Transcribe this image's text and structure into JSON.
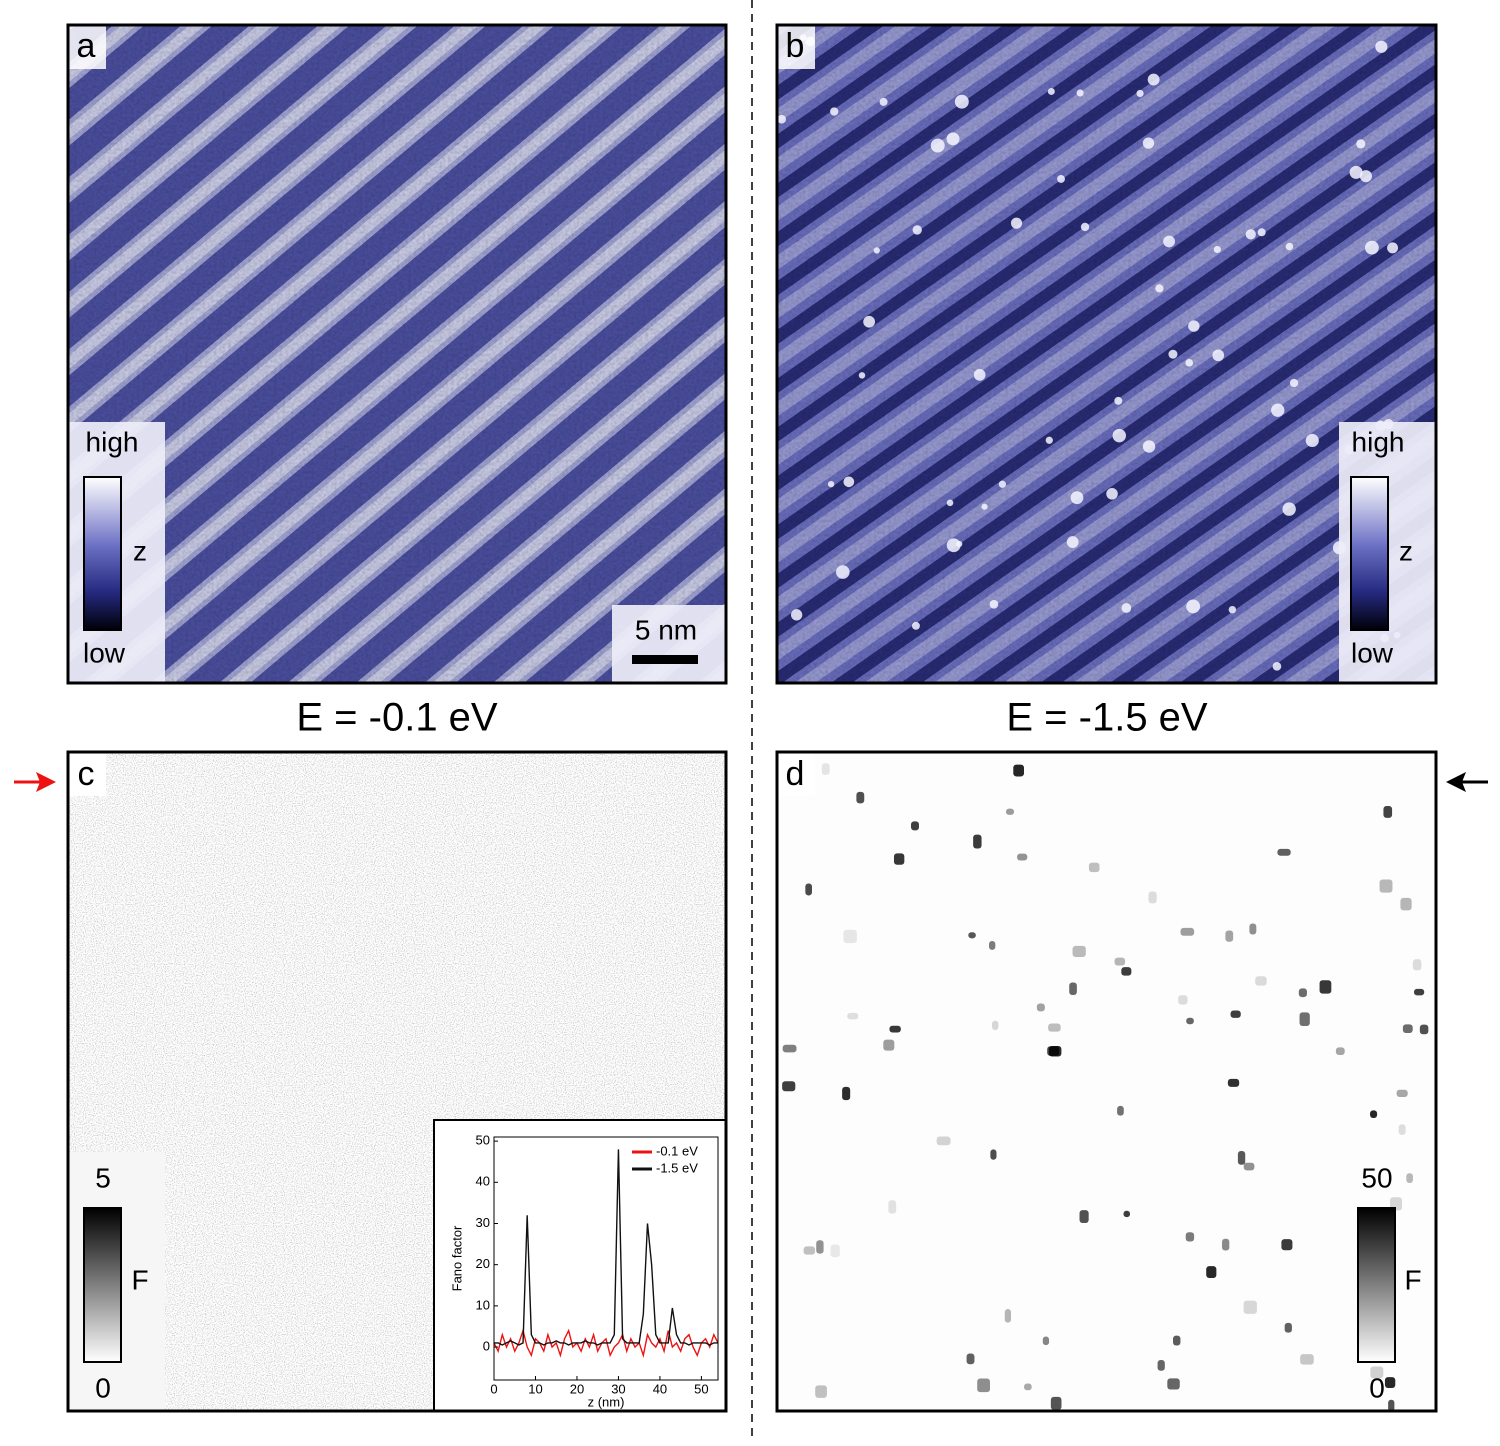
{
  "panels": [
    {
      "label": "a",
      "colorbar": {
        "top": "high",
        "axis": "z",
        "bottom": "low"
      },
      "scale_bar": "5 nm"
    },
    {
      "label": "b",
      "colorbar": {
        "top": "high",
        "axis": "z",
        "bottom": "low"
      }
    },
    {
      "label": "c",
      "colorbar": {
        "top": "5",
        "axis": "F",
        "bottom": "0"
      }
    },
    {
      "label": "d",
      "colorbar": {
        "top": "50",
        "axis": "F",
        "bottom": "0"
      }
    }
  ],
  "energies": [
    "E = -0.1 eV",
    "E = -1.5 eV"
  ],
  "chart_data": {
    "type": "line",
    "xlabel": "z (nm)",
    "ylabel": "Fano factor",
    "x": [
      0,
      1,
      2,
      3,
      4,
      5,
      6,
      7,
      8,
      9,
      10,
      11,
      12,
      13,
      14,
      15,
      16,
      17,
      18,
      19,
      20,
      21,
      22,
      23,
      24,
      25,
      26,
      27,
      28,
      29,
      30,
      31,
      32,
      33,
      34,
      35,
      36,
      37,
      38,
      39,
      40,
      41,
      42,
      43,
      44,
      45,
      46,
      47,
      48,
      49,
      50,
      51,
      52,
      53,
      54
    ],
    "series": [
      {
        "name": "-0.1 eV",
        "color": "#ee1111",
        "values": [
          1,
          -1,
          3,
          0,
          2,
          -1,
          1,
          4,
          0,
          -2,
          2,
          1,
          -1,
          3,
          0,
          1,
          -2,
          2,
          4,
          0,
          1,
          -1,
          2,
          0,
          3,
          -1,
          1,
          2,
          -2,
          0,
          1,
          3,
          -1,
          2,
          0,
          1,
          -2,
          3,
          1,
          0,
          2,
          -1,
          4,
          0,
          1,
          -1,
          2,
          3,
          0,
          -2,
          1,
          2,
          0,
          3,
          1
        ]
      },
      {
        "name": "-1.5 eV",
        "color": "#111111",
        "values": [
          1,
          1,
          0.5,
          1,
          1.5,
          1,
          0.5,
          1,
          32,
          3,
          1,
          1,
          0.5,
          1,
          1,
          1.5,
          1,
          1,
          0.5,
          1,
          1,
          1,
          1.5,
          1,
          1,
          0.5,
          1,
          1,
          1,
          3,
          48,
          2,
          1,
          1,
          1,
          1,
          8,
          30,
          20,
          3,
          1,
          1,
          1,
          9.5,
          3,
          1,
          1,
          0.5,
          1,
          1,
          1,
          1,
          0.5,
          1,
          1
        ]
      }
    ],
    "xlim": [
      0,
      54
    ],
    "ylim": [
      -8,
      51
    ],
    "xticks": [
      0,
      10,
      20,
      30,
      40,
      50
    ],
    "yticks": [
      0,
      10,
      20,
      30,
      40,
      50
    ],
    "legend": "upper-right"
  }
}
